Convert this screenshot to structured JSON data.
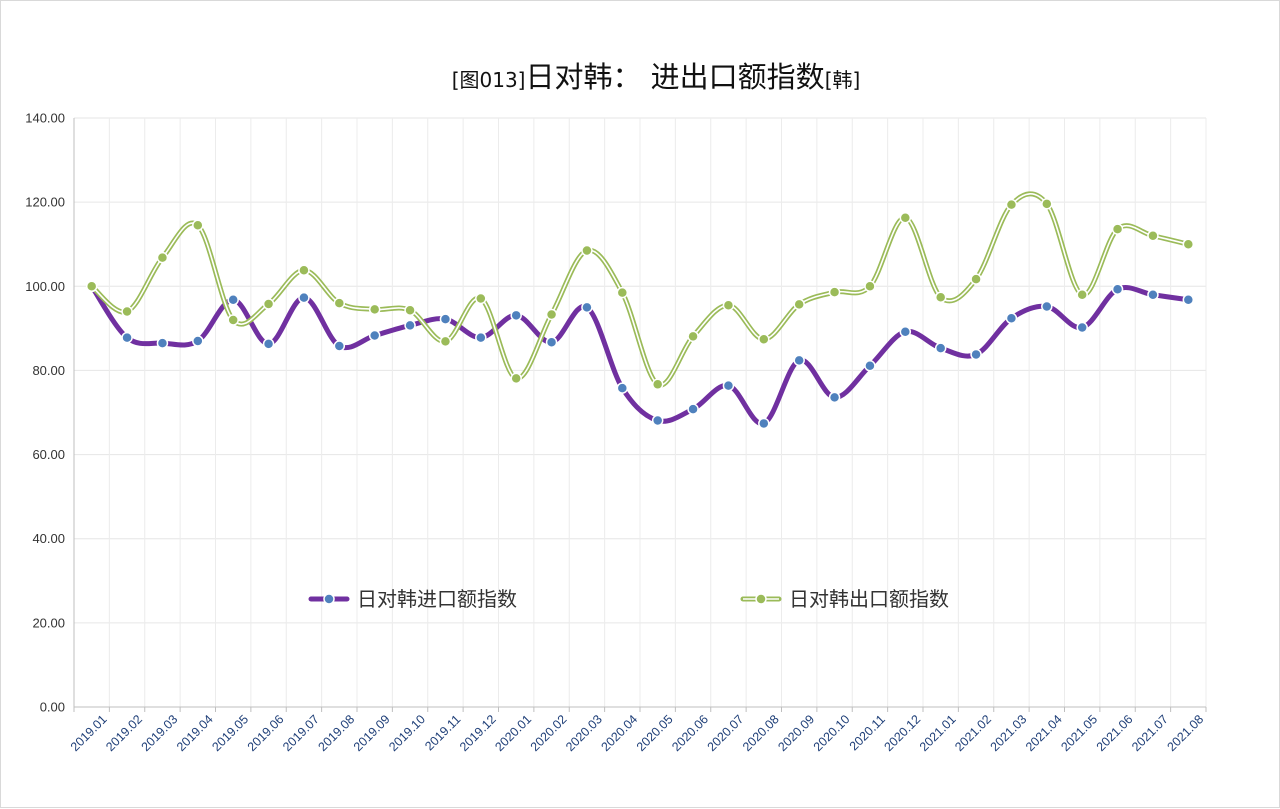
{
  "chart_data": {
    "type": "line",
    "title_bracket_open": "[图013]",
    "title_main": "日对韩： 进出口额指数",
    "title_bracket_close": "[韩]",
    "xlabel": "",
    "ylabel": "",
    "ylim": [
      0,
      140
    ],
    "yticks": [
      "0.00",
      "20.00",
      "40.00",
      "60.00",
      "80.00",
      "100.00",
      "120.00",
      "140.00"
    ],
    "grid": true,
    "smooth": true,
    "legend_position": "center",
    "categories": [
      "2019.01",
      "2019.02",
      "2019.03",
      "2019.04",
      "2019.05",
      "2019.06",
      "2019.07",
      "2019.08",
      "2019.09",
      "2019.10",
      "2019.11",
      "2019.12",
      "2020.01",
      "2020.02",
      "2020.03",
      "2020.04",
      "2020.05",
      "2020.06",
      "2020.07",
      "2020.08",
      "2020.09",
      "2020.10",
      "2020.11",
      "2020.12",
      "2021.01",
      "2021.02",
      "2021.03",
      "2021.04",
      "2021.05",
      "2021.06",
      "2021.07",
      "2021.08"
    ],
    "series": [
      {
        "name": "日对韩进口额指数",
        "color": "#7030a0",
        "marker_color": "#4f81bd",
        "values": [
          100.0,
          87.8,
          86.5,
          87.0,
          96.8,
          86.3,
          97.3,
          85.8,
          88.3,
          90.7,
          92.2,
          87.8,
          93.1,
          86.7,
          95.0,
          75.8,
          68.1,
          70.8,
          76.4,
          67.4,
          82.4,
          73.6,
          81.1,
          89.2,
          85.3,
          83.8,
          92.4,
          95.2,
          90.2,
          99.3,
          98.0,
          96.8
        ]
      },
      {
        "name": "日对韩出口额指数",
        "color": "#9bbb59",
        "marker_color": "#9bbb59",
        "values": [
          100.0,
          94.0,
          106.8,
          114.5,
          92.0,
          95.8,
          103.8,
          96.0,
          94.5,
          94.3,
          86.9,
          97.1,
          78.1,
          93.3,
          108.5,
          98.5,
          76.7,
          88.1,
          95.5,
          87.4,
          95.7,
          98.6,
          100.0,
          116.3,
          97.4,
          101.7,
          119.4,
          119.6,
          98.0,
          113.6,
          112.0,
          110.0
        ]
      }
    ]
  }
}
